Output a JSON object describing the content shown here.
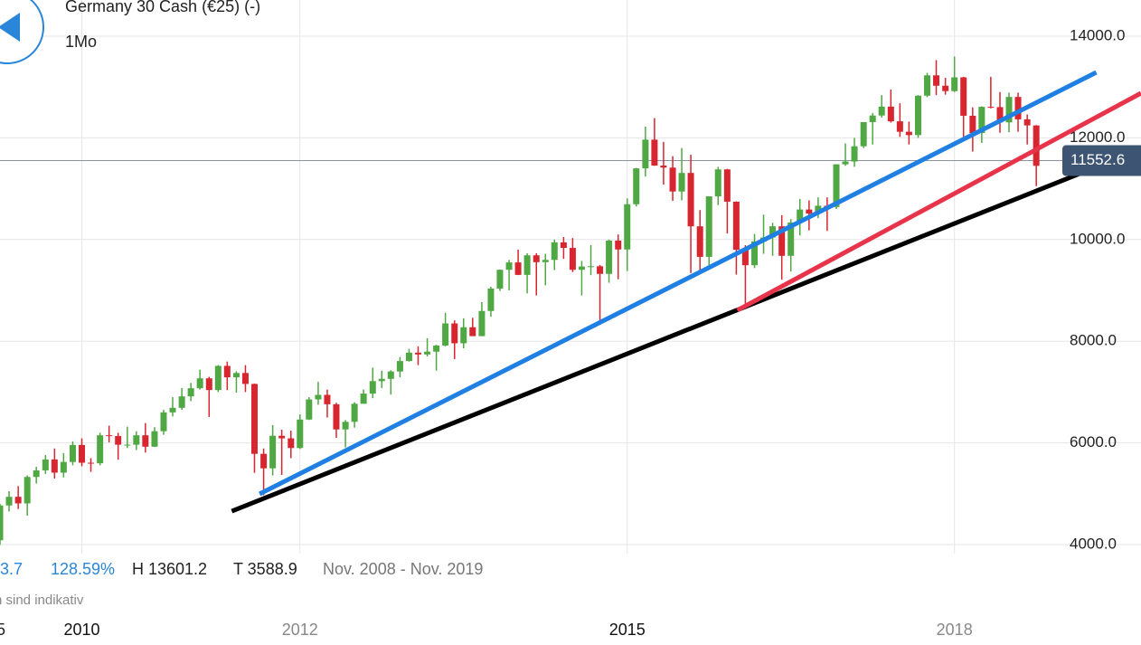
{
  "header": {
    "title": "Germany 30 Cash (€25) (-)",
    "interval": "1Mo"
  },
  "stats": {
    "change": "3.7",
    "change_pct": "128.59%",
    "high": "H 13601.2",
    "low": "T 3588.9",
    "range": "Nov. 2008 - Nov. 2019",
    "note": "n sind indikativ",
    "edge_label": "5"
  },
  "chart_data": {
    "type": "candlestick",
    "x": [
      2009.25,
      2009.333,
      2009.417,
      2009.5,
      2009.583,
      2009.667,
      2009.75,
      2009.833,
      2009.917,
      2010,
      2010.083,
      2010.167,
      2010.25,
      2010.333,
      2010.417,
      2010.5,
      2010.583,
      2010.667,
      2010.75,
      2010.833,
      2010.917,
      2011,
      2011.083,
      2011.167,
      2011.25,
      2011.333,
      2011.417,
      2011.5,
      2011.583,
      2011.667,
      2011.75,
      2011.833,
      2011.917,
      2012,
      2012.083,
      2012.167,
      2012.25,
      2012.333,
      2012.417,
      2012.5,
      2012.583,
      2012.667,
      2012.75,
      2012.833,
      2012.917,
      2013,
      2013.083,
      2013.167,
      2013.25,
      2013.333,
      2013.417,
      2013.5,
      2013.583,
      2013.667,
      2013.75,
      2013.833,
      2013.917,
      2014,
      2014.083,
      2014.167,
      2014.25,
      2014.333,
      2014.417,
      2014.5,
      2014.583,
      2014.667,
      2014.75,
      2014.833,
      2014.917,
      2015,
      2015.083,
      2015.167,
      2015.25,
      2015.333,
      2015.417,
      2015.5,
      2015.583,
      2015.667,
      2015.75,
      2015.833,
      2015.917,
      2016,
      2016.083,
      2016.167,
      2016.25,
      2016.333,
      2016.417,
      2016.5,
      2016.583,
      2016.667,
      2016.75,
      2016.833,
      2016.917,
      2017,
      2017.083,
      2017.167,
      2017.25,
      2017.333,
      2017.417,
      2017.5,
      2017.583,
      2017.667,
      2017.75,
      2017.833,
      2017.917,
      2018,
      2018.083,
      2018.167,
      2018.25,
      2018.333,
      2018.417,
      2018.5,
      2018.583,
      2018.667,
      2018.75
    ],
    "open": [
      4085,
      4770,
      4940,
      4810,
      5330,
      5460,
      5675,
      5415,
      5625,
      5960,
      5610,
      5600,
      6150,
      6135,
      5965,
      5965,
      6150,
      5925,
      6230,
      6600,
      6690,
      6915,
      7075,
      7270,
      7040,
      7515,
      7290,
      7375,
      7160,
      5785,
      5500,
      6140,
      6090,
      5900,
      6460,
      6855,
      6945,
      6760,
      6265,
      6415,
      6770,
      6970,
      7215,
      7260,
      7405,
      7610,
      7775,
      7740,
      7795,
      7915,
      8350,
      7960,
      8275,
      8100,
      8595,
      9035,
      9405,
      9550,
      9305,
      9690,
      9555,
      9600,
      9945,
      9835,
      9405,
      9470,
      9475,
      9325,
      9980,
      9805,
      10695,
      11400,
      11965,
      11455,
      11415,
      10945,
      11310,
      10260,
      9660,
      10850,
      11380,
      10745,
      9800,
      9495,
      9965,
      10040,
      10260,
      9680,
      10335,
      10590,
      10510,
      10665,
      10640,
      11480,
      11535,
      11835,
      12310,
      12440,
      12615,
      12325,
      12120,
      12055,
      12830,
      13230,
      13025,
      12920,
      13190,
      12435,
      12095,
      12610,
      12605,
      12305,
      12805,
      12365,
      12245
    ],
    "high": [
      4800,
      5050,
      5150,
      5360,
      5530,
      5760,
      5890,
      5800,
      6030,
      6090,
      5700,
      6200,
      6340,
      6200,
      6320,
      6230,
      6390,
      6310,
      6650,
      6900,
      7080,
      7180,
      7440,
      7300,
      7530,
      7600,
      7410,
      7530,
      7170,
      5890,
      6350,
      6260,
      6240,
      6560,
      6900,
      7200,
      7050,
      6790,
      6450,
      6800,
      7050,
      7480,
      7420,
      7430,
      7690,
      7850,
      7900,
      8060,
      7930,
      8560,
      8410,
      8450,
      8460,
      8770,
      9070,
      9410,
      9600,
      9800,
      9730,
      9730,
      9720,
      10000,
      10050,
      10030,
      9580,
      9890,
      9500,
      10000,
      10100,
      10810,
      11410,
      12220,
      12390,
      11920,
      11640,
      11800,
      11670,
      10580,
      10850,
      11430,
      11390,
      10750,
      9890,
      10110,
      10490,
      10330,
      10480,
      10400,
      10800,
      10770,
      10830,
      10830,
      11480,
      11890,
      12000,
      12310,
      12490,
      12840,
      12950,
      12680,
      12320,
      12840,
      13280,
      13530,
      13180,
      13600,
      13200,
      12600,
      12620,
      13200,
      12900,
      12890,
      12890,
      12460,
      12250
    ],
    "low": [
      3990,
      4650,
      4700,
      4570,
      5200,
      5390,
      5300,
      5320,
      5560,
      5540,
      5430,
      5560,
      6010,
      5670,
      5900,
      5860,
      5810,
      5920,
      6160,
      6520,
      6650,
      6820,
      7050,
      6510,
      7000,
      7040,
      6990,
      7000,
      5410,
      4970,
      5360,
      5370,
      5700,
      5880,
      6450,
      6750,
      6500,
      6100,
      5910,
      6300,
      6770,
      6880,
      7080,
      6950,
      7290,
      7600,
      7530,
      7700,
      7420,
      7900,
      7650,
      7860,
      8100,
      8100,
      8480,
      8990,
      9000,
      9300,
      8940,
      8900,
      9100,
      9400,
      9620,
      9360,
      8900,
      9300,
      8350,
      9150,
      9220,
      9380,
      10650,
      11240,
      11450,
      11080,
      10760,
      10770,
      9340,
      9320,
      9500,
      10680,
      10120,
      9310,
      8700,
      9440,
      9720,
      9680,
      9210,
      9370,
      10080,
      10180,
      10420,
      10170,
      10600,
      11450,
      11430,
      11800,
      11870,
      12400,
      12300,
      12020,
      11870,
      12000,
      12800,
      12840,
      12850,
      12900,
      12000,
      11730,
      11900,
      12580,
      12100,
      12110,
      12120,
      11870,
      11050
    ],
    "close": [
      4770,
      4940,
      4810,
      5330,
      5460,
      5675,
      5415,
      5625,
      5960,
      5610,
      5600,
      6150,
      6135,
      5965,
      5965,
      6150,
      5925,
      6230,
      6600,
      6690,
      6915,
      7075,
      7270,
      7040,
      7515,
      7290,
      7375,
      7160,
      5785,
      5500,
      6140,
      6090,
      5900,
      6460,
      6855,
      6945,
      6760,
      6265,
      6415,
      6770,
      6970,
      7215,
      7260,
      7405,
      7610,
      7775,
      7740,
      7795,
      7915,
      8350,
      7960,
      8275,
      8100,
      8595,
      9035,
      9405,
      9550,
      9305,
      9690,
      9555,
      9600,
      9945,
      9835,
      9405,
      9470,
      9475,
      9325,
      9980,
      9805,
      10695,
      11400,
      11965,
      11455,
      11415,
      10945,
      11310,
      10260,
      9660,
      10850,
      11380,
      10745,
      9800,
      9495,
      9965,
      10040,
      10260,
      9680,
      10335,
      10590,
      10510,
      10665,
      10640,
      11480,
      11535,
      11835,
      12310,
      12440,
      12615,
      12325,
      12120,
      12055,
      12830,
      13230,
      13025,
      12920,
      13190,
      12435,
      12095,
      12610,
      12605,
      12305,
      12805,
      12365,
      12245,
      11450
    ],
    "up_color": "#4fa843",
    "down_color": "#d7262f",
    "xlim": [
      2009.25,
      2019.71
    ],
    "xticks": [
      2010,
      2012,
      2015,
      2018
    ],
    "ylim": [
      4000,
      14000
    ],
    "yticks": [
      {
        "value": 4000,
        "label": "4000.0"
      },
      {
        "value": 6000,
        "label": "6000.0"
      },
      {
        "value": 8000,
        "label": "8000.0"
      },
      {
        "value": 10000,
        "label": "10000.0"
      },
      {
        "value": 12000,
        "label": "12000.0"
      },
      {
        "value": 14000,
        "label": "14000.0"
      }
    ],
    "grid": true,
    "last_price": 11552.6,
    "trendlines": [
      {
        "color": "#1f7fe3",
        "x": [
          2011.63,
          2019.3
        ],
        "y": [
          4996,
          13288
        ]
      },
      {
        "color": "#000000",
        "x": [
          2011.375,
          2019.71
        ],
        "y": [
          4658,
          11776
        ]
      },
      {
        "color": "#e8344a",
        "x": [
          2016.01,
          2019.71
        ],
        "y": [
          8609,
          12879
        ]
      }
    ]
  }
}
